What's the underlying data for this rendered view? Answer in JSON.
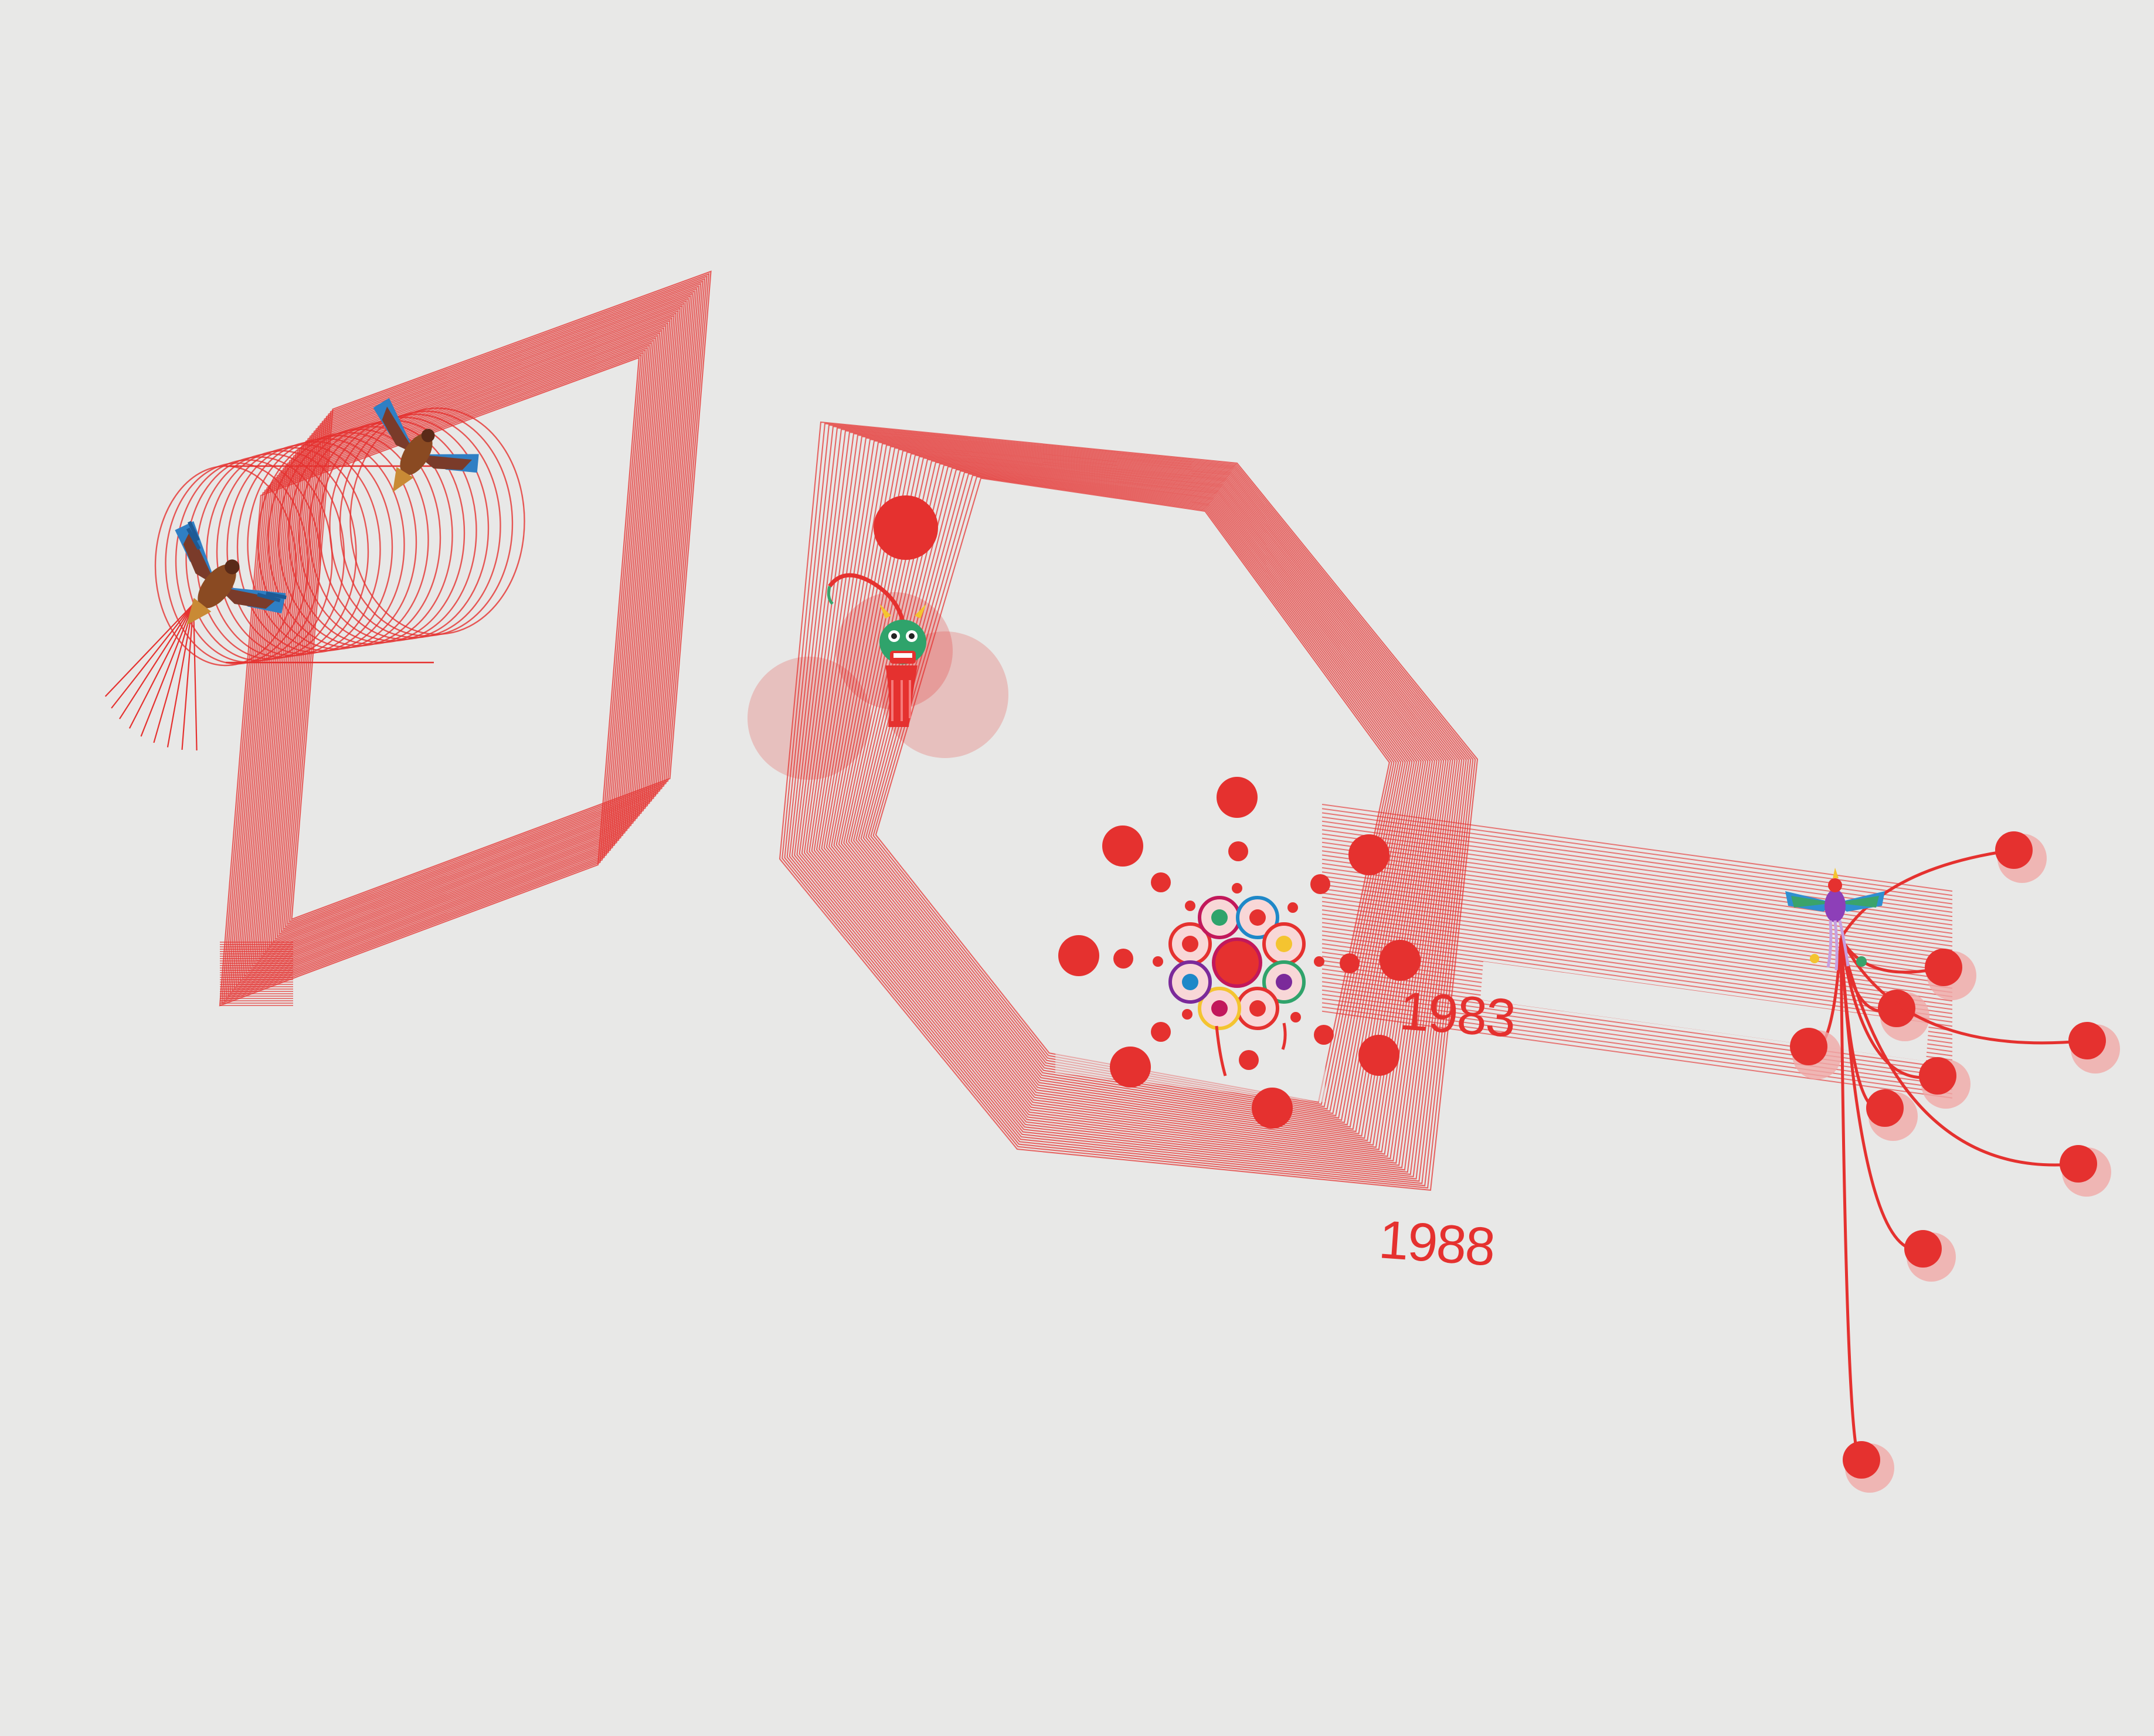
{
  "labels": {
    "year_1983": "1983",
    "year_1988": "1988"
  },
  "colors": {
    "background": "#e8e8e7",
    "accent_red": "#e5312f",
    "light_red": "#f0a9a8"
  },
  "icons": {
    "eagle_kite": "eagle-kite-icon",
    "dragon_kite": "dragon-kite-icon",
    "flower_kite": "flower-medallion-kite-icon",
    "phoenix_kite": "phoenix-kite-icon"
  }
}
